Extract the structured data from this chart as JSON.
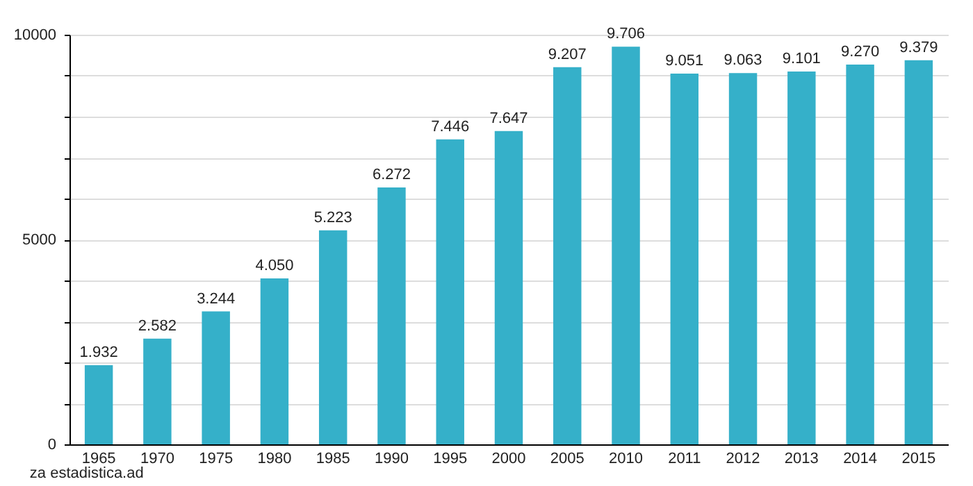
{
  "chart_data": {
    "type": "bar",
    "categories": [
      "1965",
      "1970",
      "1975",
      "1980",
      "1985",
      "1990",
      "1995",
      "2000",
      "2005",
      "2010",
      "2011",
      "2012",
      "2013",
      "2014",
      "2015"
    ],
    "values": [
      1932,
      2582,
      3244,
      4050,
      5223,
      6272,
      7446,
      7647,
      9207,
      9706,
      9051,
      9063,
      9101,
      9270,
      9379
    ],
    "value_labels": [
      "1.932",
      "2.582",
      "3.244",
      "4.050",
      "5.223",
      "6.272",
      "7.446",
      "7.647",
      "9.207",
      "9.706",
      "9.051",
      "9.063",
      "9.101",
      "9.270",
      "9.379"
    ],
    "color": "#35b0c9",
    "ylim": [
      0,
      10000
    ],
    "yticks": [
      0,
      {
        "value": 1000,
        "label": null
      },
      {
        "value": 2000,
        "label": null
      },
      {
        "value": 3000,
        "label": null
      },
      {
        "value": 4000,
        "label": null
      },
      5000,
      {
        "value": 6000,
        "label": null
      },
      {
        "value": 7000,
        "label": null
      },
      {
        "value": 8000,
        "label": null
      },
      {
        "value": 9000,
        "label": null
      },
      10000
    ],
    "grid": true,
    "annotations": [
      "za estadistica.ad"
    ]
  }
}
